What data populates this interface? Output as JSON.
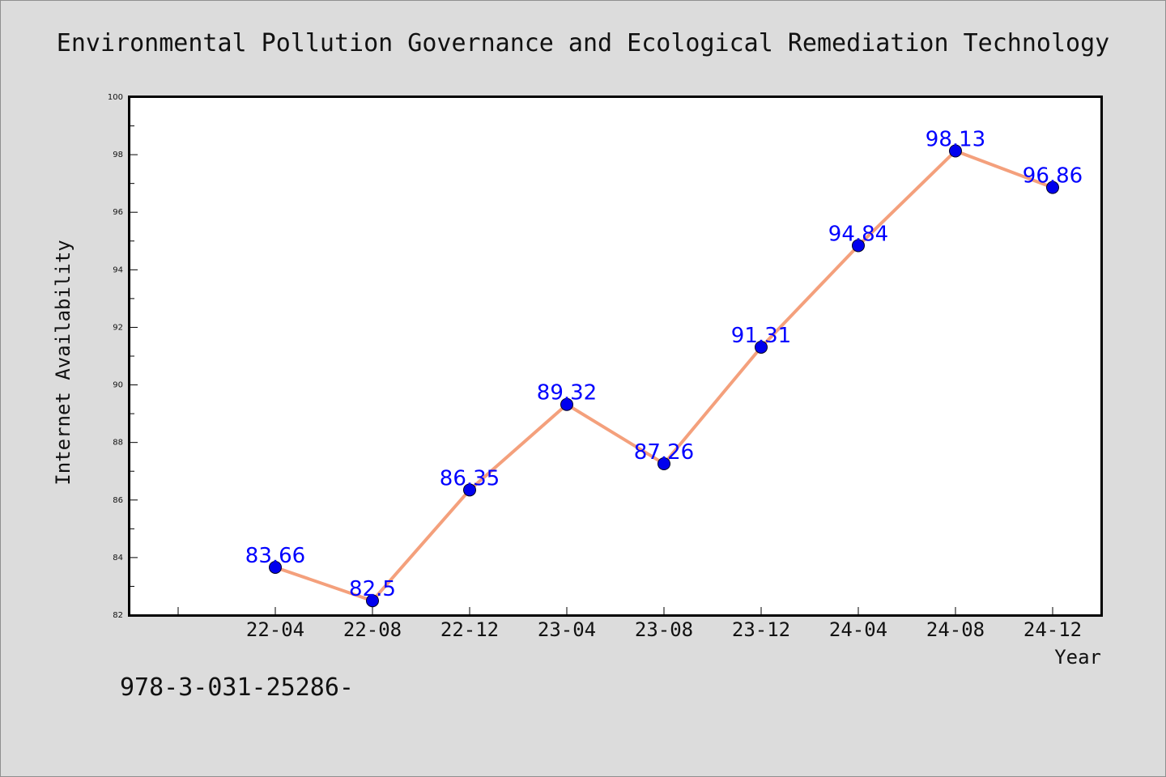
{
  "chart_data": {
    "type": "line",
    "title": "Environmental Pollution Governance and Ecological Remediation Technology",
    "xlabel": "Year",
    "ylabel": "Internet Availability",
    "categories": [
      "22-04",
      "22-08",
      "22-12",
      "23-04",
      "23-08",
      "23-12",
      "24-04",
      "24-08",
      "24-12"
    ],
    "series": [
      {
        "values": [
          83.66,
          82.5,
          86.35,
          89.32,
          87.26,
          91.31,
          94.84,
          98.13,
          96.86
        ]
      }
    ],
    "data_labels": [
      "83.66",
      "82.5",
      "86.35",
      "89.32",
      "87.26",
      "91.31",
      "94.84",
      "98.13",
      "96.86"
    ],
    "ylim": [
      82,
      100
    ],
    "y_ticks": [
      "82",
      "84",
      "86",
      "88",
      "90",
      "92",
      "94",
      "96",
      "98",
      "100"
    ],
    "grid": false,
    "line_color": "#f4a07c",
    "marker_color": "#0000ee",
    "label_color": "#0000ff"
  },
  "footer": {
    "code": "978-3-031-25286-"
  }
}
